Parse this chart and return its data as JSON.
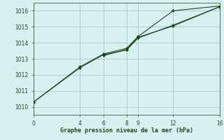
{
  "background_color": "#d8f0f0",
  "grid_color": "#a8c8c8",
  "line_color": "#1a4a1a",
  "marker_color": "#1a4a1a",
  "xlabel": "Graphe pression niveau de la mer (hPa)",
  "xlabel_color": "#1a4a1a",
  "xlim": [
    0,
    16
  ],
  "ylim": [
    1009.5,
    1016.5
  ],
  "xticks": [
    0,
    4,
    6,
    8,
    9,
    12,
    16
  ],
  "yticks": [
    1010,
    1011,
    1012,
    1013,
    1014,
    1015,
    1016
  ],
  "line1_x": [
    0,
    4,
    6,
    8,
    9,
    12,
    16
  ],
  "line1_y": [
    1010.3,
    1012.5,
    1013.3,
    1013.65,
    1014.4,
    1016.0,
    1016.3
  ],
  "line2_x": [
    0,
    4,
    6,
    8,
    9,
    12,
    16
  ],
  "line2_y": [
    1010.3,
    1012.45,
    1013.25,
    1013.55,
    1014.3,
    1015.1,
    1016.25
  ],
  "line3_x": [
    6,
    8,
    9,
    12,
    16
  ],
  "line3_y": [
    1013.2,
    1013.58,
    1014.35,
    1015.05,
    1016.25
  ]
}
